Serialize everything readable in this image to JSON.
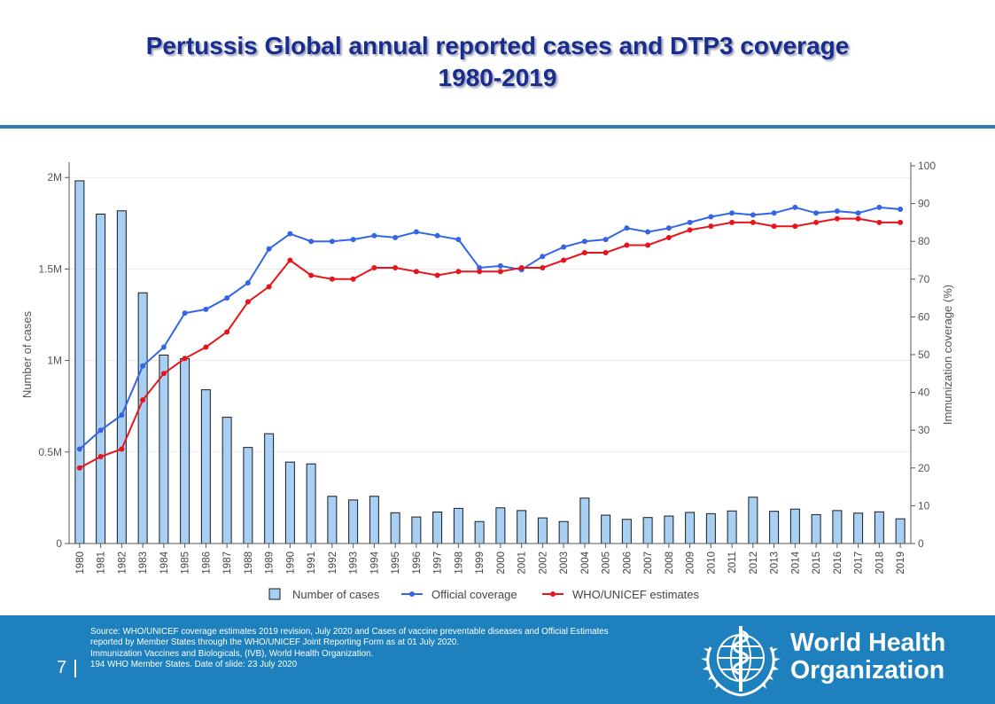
{
  "slide": {
    "title_line1": "Pertussis Global annual reported cases and DTP3 coverage",
    "title_line2": "1980-2019",
    "page_number": "7",
    "source_lines": [
      "Source: WHO/UNICEF   coverage estimates 2019 revision, July 2020 and  Cases of vaccine preventable diseases and Official Estimates",
      "reported by Member States through the WHO/UNICEF  Joint Reporting Form as at 01 July 2020.",
      "Immunization  Vaccines and Biologicals, (IVB), World Health Organization.",
      "194 WHO Member States. Date of slide: 23 July 2020"
    ],
    "logo_line1": "World Health",
    "logo_line2": "Organization"
  },
  "colors": {
    "title": "#1a2c8c",
    "footer_bg": "#1e81bd",
    "bar_fill": "#a8d0f5",
    "bar_stroke": "#1a1a1a",
    "official": "#3366e6",
    "who_unicef": "#e8141c"
  },
  "chart_data": {
    "type": "bar+line",
    "categories": [
      "1980",
      "1981",
      "1982",
      "1983",
      "1984",
      "1985",
      "1986",
      "1987",
      "1988",
      "1989",
      "1990",
      "1991",
      "1992",
      "1993",
      "1994",
      "1995",
      "1996",
      "1997",
      "1998",
      "1999",
      "2000",
      "2001",
      "2002",
      "2003",
      "2004",
      "2005",
      "2006",
      "2007",
      "2008",
      "2009",
      "2010",
      "2011",
      "2012",
      "2013",
      "2014",
      "2015",
      "2016",
      "2017",
      "2018",
      "2019"
    ],
    "ylabel_left": "Number of cases",
    "ylabel_right": "Immunization coverage (%)",
    "ylim_left": [
      0,
      2000000
    ],
    "ylim_right": [
      0,
      100
    ],
    "yticks_left": [
      "0",
      "0.5M",
      "1M",
      "1.5M",
      "2M"
    ],
    "yticks_right": [
      "0",
      "10",
      "20",
      "30",
      "40",
      "50",
      "60",
      "70",
      "80",
      "90",
      "100"
    ],
    "grid": true,
    "legend_position": "bottom-center",
    "series": [
      {
        "name": "Number of cases",
        "type": "bar",
        "axis": "left",
        "values": [
          1982000,
          1800000,
          1818000,
          1370000,
          1030000,
          1010000,
          840000,
          690000,
          525000,
          600000,
          445000,
          435000,
          258000,
          238000,
          258000,
          168000,
          145000,
          172000,
          192000,
          120000,
          195000,
          180000,
          140000,
          120000,
          248000,
          155000,
          132000,
          142000,
          150000,
          170000,
          163000,
          178000,
          253000,
          176000,
          188000,
          158000,
          180000,
          166000,
          173000,
          135000
        ]
      },
      {
        "name": "Official coverage",
        "type": "line",
        "axis": "right",
        "values": [
          25,
          30,
          34,
          47,
          52,
          61,
          62,
          65,
          69,
          78,
          82,
          80,
          80,
          80.5,
          81.5,
          81,
          82.5,
          81.5,
          80.5,
          73,
          73.5,
          72.5,
          76,
          78.5,
          80,
          80.5,
          83.5,
          82.5,
          83.5,
          85,
          86.5,
          87.5,
          87,
          87.5,
          89,
          87.5,
          88,
          87.5,
          89,
          88.5
        ]
      },
      {
        "name": "WHO/UNICEF estimates",
        "type": "line",
        "axis": "right",
        "values": [
          20,
          23,
          25,
          38,
          45,
          49,
          52,
          56,
          64,
          68,
          75,
          71,
          70,
          70,
          73,
          73,
          72,
          71,
          72,
          72,
          72,
          73,
          73,
          75,
          77,
          77,
          79,
          79,
          81,
          83,
          84,
          85,
          85,
          84,
          84,
          85,
          86,
          86,
          85,
          85
        ]
      }
    ]
  }
}
